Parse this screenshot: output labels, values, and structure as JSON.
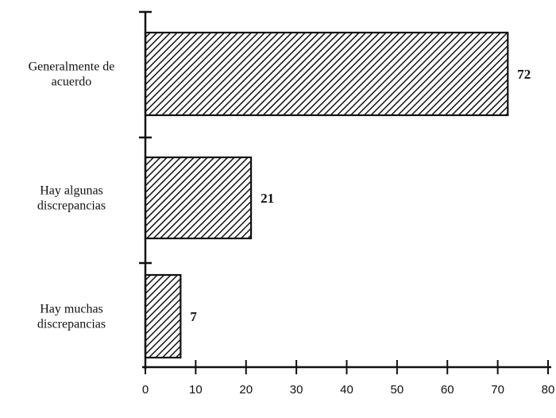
{
  "chart_data": {
    "type": "bar",
    "orientation": "horizontal",
    "categories": [
      [
        "Generalmente de",
        "acuerdo"
      ],
      [
        "Hay algunas",
        "discrepancias"
      ],
      [
        "Hay muchas",
        "discrepancias"
      ]
    ],
    "values": [
      72,
      21,
      7
    ],
    "value_labels": [
      "72",
      "21",
      "7"
    ],
    "xlim": [
      0,
      80
    ],
    "xticks": [
      0,
      10,
      20,
      30,
      40,
      50,
      60,
      70,
      80
    ],
    "grid": false,
    "bar_fill": "diagonal-hatch",
    "colors": {
      "ink": "#111111",
      "background": "#ffffff"
    }
  }
}
